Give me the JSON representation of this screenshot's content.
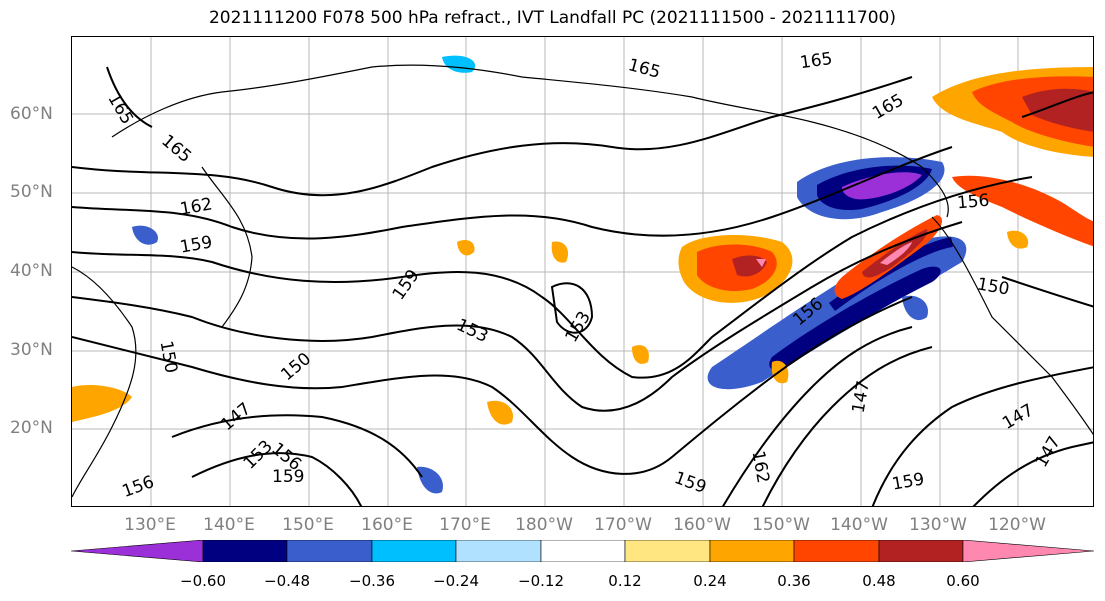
{
  "title": "2021111200 F078 500 hPa refract., IVT Landfall PC (2021111500 - 2021111700)",
  "lat_labels": [
    "60°N",
    "50°N",
    "40°N",
    "30°N",
    "20°N"
  ],
  "lon_labels": [
    "130°E",
    "140°E",
    "150°E",
    "160°E",
    "170°E",
    "180°W",
    "170°W",
    "160°W",
    "150°W",
    "140°W",
    "130°W",
    "120°W"
  ],
  "contour_labels": [
    "165",
    "165",
    "165",
    "165",
    "165",
    "162",
    "159",
    "159",
    "159",
    "156",
    "156",
    "153",
    "153",
    "150",
    "150",
    "150",
    "147",
    "147",
    "147",
    "147",
    "162",
    "159",
    "159",
    "153",
    "156",
    "156"
  ],
  "colorbar": {
    "ticks": [
      "−0.60",
      "−0.48",
      "−0.36",
      "−0.24",
      "−0.12",
      "0.12",
      "0.24",
      "0.36",
      "0.48",
      "0.60"
    ],
    "colors": [
      "#9b30d9",
      "#000080",
      "#3a5fcd",
      "#00bfff",
      "#b0e2ff",
      "#ffffff",
      "#ffe680",
      "#ffa500",
      "#ff4500",
      "#b22222",
      "#ff88b0"
    ]
  }
}
